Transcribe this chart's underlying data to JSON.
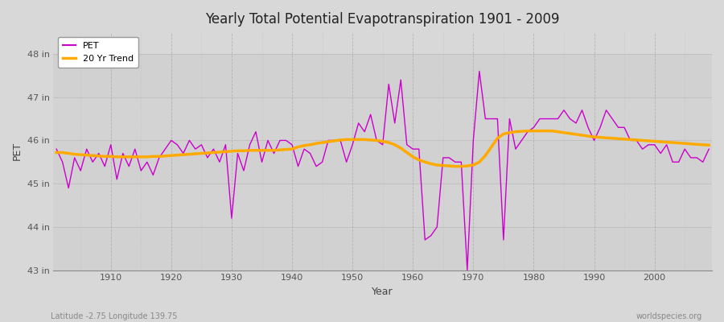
{
  "title": "Yearly Total Potential Evapotranspiration 1901 - 2009",
  "xlabel": "Year",
  "ylabel": "PET",
  "subtitle_left": "Latitude -2.75 Longitude 139.75",
  "subtitle_right": "worldspecies.org",
  "background_color": "#d8d8d8",
  "plot_bg_color": "#d8d8d8",
  "pet_color": "#cc00cc",
  "trend_color": "#ffaa00",
  "ylim": [
    43.0,
    48.5
  ],
  "xlim": [
    1900.5,
    2009.5
  ],
  "yticks": [
    43,
    44,
    45,
    46,
    47,
    48
  ],
  "ytick_labels": [
    "43 in",
    "44 in",
    "45 in",
    "46 in",
    "47 in",
    "48 in"
  ],
  "xticks": [
    1910,
    1920,
    1930,
    1940,
    1950,
    1960,
    1970,
    1980,
    1990,
    2000
  ],
  "years": [
    1901,
    1902,
    1903,
    1904,
    1905,
    1906,
    1907,
    1908,
    1909,
    1910,
    1911,
    1912,
    1913,
    1914,
    1915,
    1916,
    1917,
    1918,
    1919,
    1920,
    1921,
    1922,
    1923,
    1924,
    1925,
    1926,
    1927,
    1928,
    1929,
    1930,
    1931,
    1932,
    1933,
    1934,
    1935,
    1936,
    1937,
    1938,
    1939,
    1940,
    1941,
    1942,
    1943,
    1944,
    1945,
    1946,
    1947,
    1948,
    1949,
    1950,
    1951,
    1952,
    1953,
    1954,
    1955,
    1956,
    1957,
    1958,
    1959,
    1960,
    1961,
    1962,
    1963,
    1964,
    1965,
    1966,
    1967,
    1968,
    1969,
    1970,
    1971,
    1972,
    1973,
    1974,
    1975,
    1976,
    1977,
    1978,
    1979,
    1980,
    1981,
    1982,
    1983,
    1984,
    1985,
    1986,
    1987,
    1988,
    1989,
    1990,
    1991,
    1992,
    1993,
    1994,
    1995,
    1996,
    1997,
    1998,
    1999,
    2000,
    2001,
    2002,
    2003,
    2004,
    2005,
    2006,
    2007,
    2008,
    2009
  ],
  "pet_values": [
    45.8,
    45.5,
    44.9,
    45.6,
    45.3,
    45.8,
    45.5,
    45.7,
    45.4,
    45.9,
    45.1,
    45.7,
    45.4,
    45.8,
    45.3,
    45.5,
    45.2,
    45.6,
    45.8,
    46.0,
    45.9,
    45.7,
    46.0,
    45.8,
    45.9,
    45.6,
    45.8,
    45.5,
    45.9,
    44.2,
    45.7,
    45.3,
    45.9,
    46.2,
    45.5,
    46.0,
    45.7,
    46.0,
    46.0,
    45.9,
    45.4,
    45.8,
    45.7,
    45.4,
    45.5,
    46.0,
    46.0,
    46.0,
    45.5,
    45.9,
    46.4,
    46.2,
    46.6,
    46.0,
    45.9,
    47.3,
    46.4,
    47.4,
    45.9,
    45.8,
    45.8,
    43.7,
    43.8,
    44.0,
    45.6,
    45.6,
    45.5,
    45.5,
    43.0,
    46.0,
    47.6,
    46.5,
    46.5,
    46.5,
    43.7,
    46.5,
    45.8,
    46.0,
    46.2,
    46.3,
    46.5,
    46.5,
    46.5,
    46.5,
    46.7,
    46.5,
    46.4,
    46.7,
    46.3,
    46.0,
    46.3,
    46.7,
    46.5,
    46.3,
    46.3,
    46.0,
    46.0,
    45.8,
    45.9,
    45.9,
    45.7,
    45.9,
    45.5,
    45.5,
    45.8,
    45.6,
    45.6,
    45.5,
    45.8
  ],
  "trend_values": [
    45.72,
    45.72,
    45.7,
    45.68,
    45.67,
    45.66,
    45.65,
    45.64,
    45.63,
    45.63,
    45.62,
    45.62,
    45.62,
    45.62,
    45.62,
    45.62,
    45.63,
    45.63,
    45.64,
    45.65,
    45.66,
    45.67,
    45.68,
    45.69,
    45.7,
    45.71,
    45.72,
    45.73,
    45.74,
    45.75,
    45.76,
    45.76,
    45.77,
    45.77,
    45.77,
    45.77,
    45.77,
    45.78,
    45.79,
    45.8,
    45.85,
    45.88,
    45.9,
    45.93,
    45.95,
    45.97,
    45.99,
    46.01,
    46.02,
    46.02,
    46.02,
    46.02,
    46.01,
    46.0,
    45.98,
    45.95,
    45.9,
    45.82,
    45.72,
    45.62,
    45.55,
    45.5,
    45.46,
    45.43,
    45.42,
    45.41,
    45.4,
    45.4,
    45.41,
    45.43,
    45.5,
    45.65,
    45.85,
    46.05,
    46.15,
    46.18,
    46.2,
    46.21,
    46.22,
    46.22,
    46.22,
    46.22,
    46.22,
    46.2,
    46.18,
    46.16,
    46.14,
    46.12,
    46.1,
    46.08,
    46.07,
    46.06,
    46.05,
    46.04,
    46.03,
    46.02,
    46.01,
    46.0,
    45.99,
    45.98,
    45.97,
    45.96,
    45.95,
    45.94,
    45.93,
    45.92,
    45.91,
    45.9,
    45.89
  ]
}
